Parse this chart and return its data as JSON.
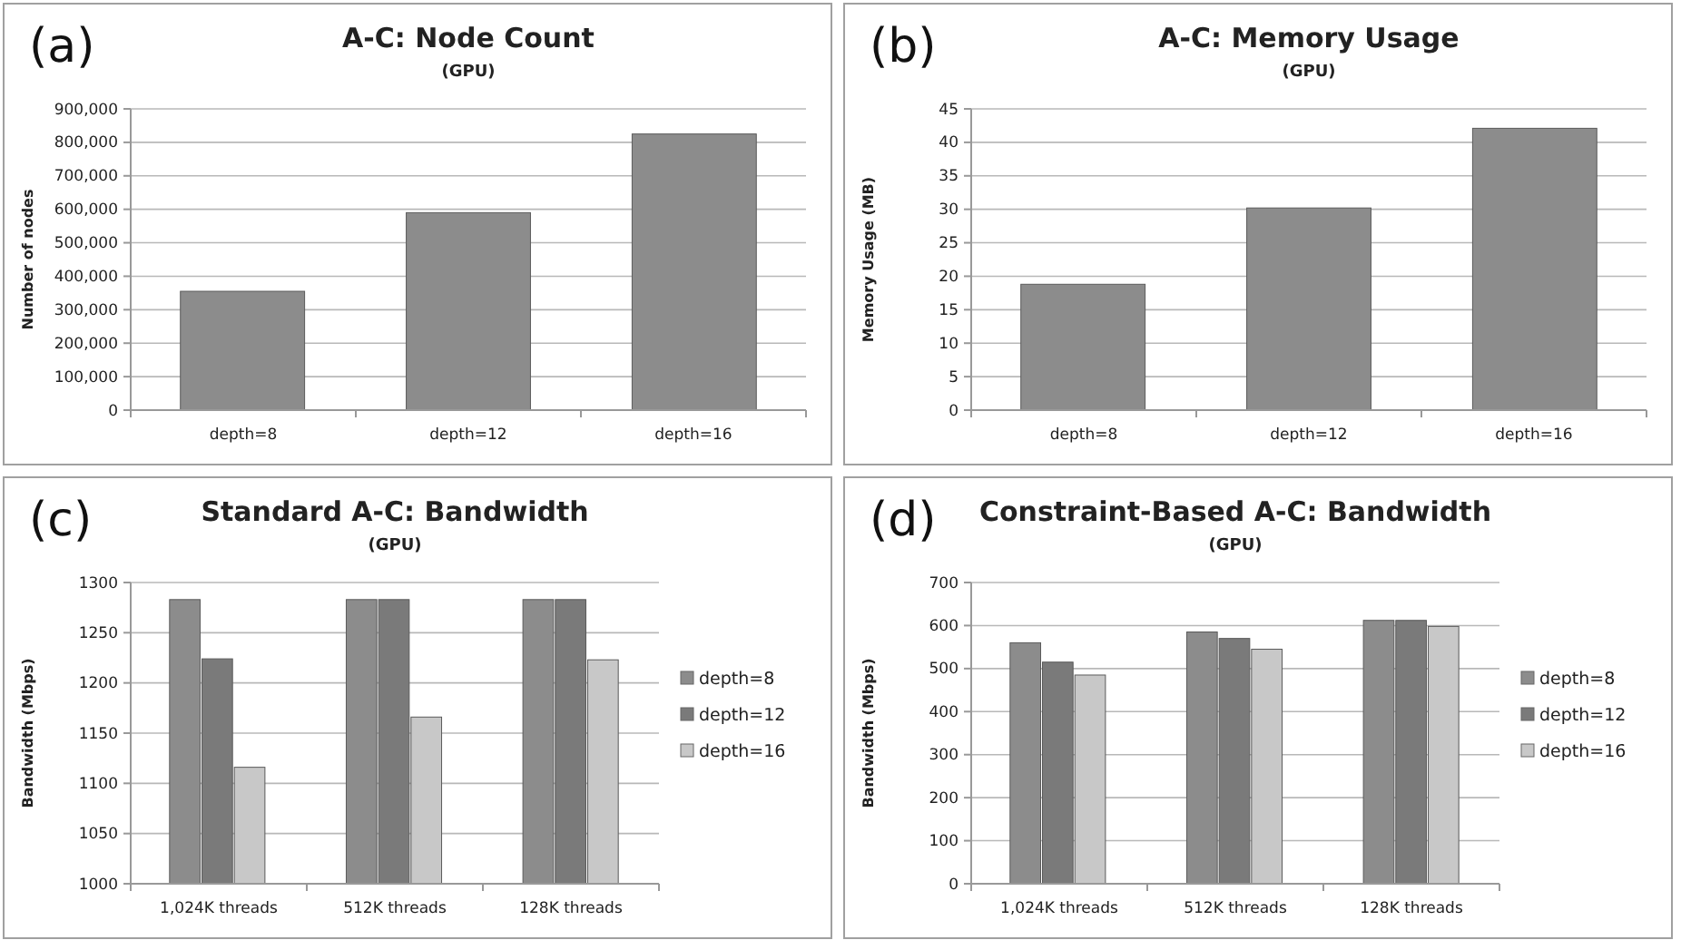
{
  "chart_data": [
    {
      "type": "bar",
      "title": "A-C: Node Count",
      "subtitle": "(GPU)",
      "ylabel": "Number of nodes",
      "annotations": [
        "(a)"
      ],
      "categories": [
        "depth=8",
        "depth=12",
        "depth=16"
      ],
      "values": [
        355000,
        590000,
        825000
      ],
      "color": "#8c8c8c",
      "ylim": [
        0,
        900000
      ],
      "yticks": [
        0,
        {
          "value": 100000,
          "label": "100,000"
        },
        {
          "value": 200000,
          "label": "200,000"
        },
        {
          "value": 300000,
          "label": "300,000"
        },
        {
          "value": 400000,
          "label": "400,000"
        },
        {
          "value": 500000,
          "label": "500,000"
        },
        {
          "value": 600000,
          "label": "600,000"
        },
        {
          "value": 700000,
          "label": "700,000"
        },
        {
          "value": 800000,
          "label": "800,000"
        },
        {
          "value": 900000,
          "label": "900,000"
        }
      ],
      "grid": "y"
    },
    {
      "type": "bar",
      "title": "A-C: Memory Usage",
      "subtitle": "(GPU)",
      "ylabel": "Memory Usage  (MB)",
      "annotations": [
        "(b)"
      ],
      "categories": [
        "depth=8",
        "depth=12",
        "depth=16"
      ],
      "values": [
        18.8,
        30.2,
        42.1
      ],
      "color": "#8c8c8c",
      "ylim": [
        0,
        45
      ],
      "yticks": [
        0,
        5,
        10,
        15,
        20,
        25,
        30,
        35,
        40,
        45
      ],
      "grid": "y"
    },
    {
      "type": "bar",
      "title": "Standard A-C: Bandwidth",
      "subtitle": "(GPU)",
      "ylabel": "Bandwidth  (Mbps)",
      "annotations": [
        "(c)"
      ],
      "categories": [
        "1,024K threads",
        "512K threads",
        "128K threads"
      ],
      "series": [
        {
          "name": "depth=8",
          "color": "#8c8c8c",
          "values": [
            1283,
            1283,
            1283
          ]
        },
        {
          "name": "depth=12",
          "color": "#7a7a7a",
          "values": [
            1224,
            1283,
            1283
          ]
        },
        {
          "name": "depth=16",
          "color": "#c8c8c8",
          "values": [
            1116,
            1166,
            1223
          ]
        }
      ],
      "ylim": [
        1000,
        1300
      ],
      "yticks": [
        1000,
        1050,
        1100,
        1150,
        1200,
        1250,
        1300
      ],
      "grid": "y",
      "legend": "right"
    },
    {
      "type": "bar",
      "title": "Constraint-Based A-C: Bandwidth",
      "subtitle": "(GPU)",
      "ylabel": "Bandwidth  (Mbps)",
      "annotations": [
        "(d)"
      ],
      "categories": [
        "1,024K threads",
        "512K threads",
        "128K threads"
      ],
      "series": [
        {
          "name": "depth=8",
          "color": "#8c8c8c",
          "values": [
            560,
            585,
            612
          ]
        },
        {
          "name": "depth=12",
          "color": "#7a7a7a",
          "values": [
            515,
            570,
            612
          ]
        },
        {
          "name": "depth=16",
          "color": "#c8c8c8",
          "values": [
            485,
            545,
            598
          ]
        }
      ],
      "ylim": [
        0,
        700
      ],
      "yticks": [
        0,
        100,
        200,
        300,
        400,
        500,
        600,
        700
      ],
      "grid": "y",
      "legend": "right"
    }
  ]
}
